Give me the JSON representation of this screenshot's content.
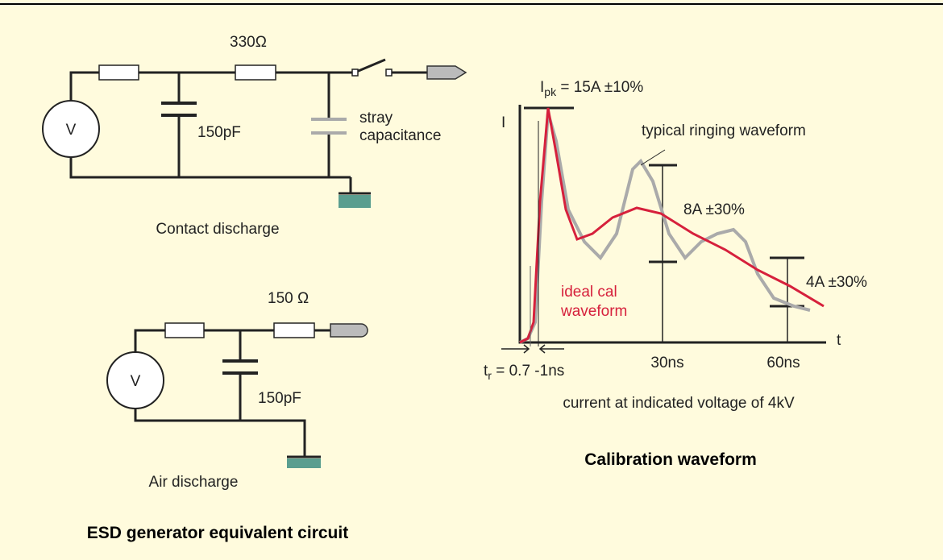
{
  "contact_circuit": {
    "resistor_label": "330Ω",
    "capacitor_label": "150pF",
    "stray_label": [
      "stray",
      "capacitance"
    ],
    "source_label": "V",
    "caption": "Contact discharge"
  },
  "air_circuit": {
    "resistor_label": "150 Ω",
    "capacitor_label": "150pF",
    "source_label": "V",
    "caption": "Air discharge"
  },
  "left_caption": "ESD generator equivalent circuit",
  "waveform": {
    "peak_label": {
      "symbol": "I",
      "subscript": "pk",
      "text": " = 15A ±10%"
    },
    "y_axis_label": "I",
    "x_axis_label": "t",
    "ringing_label": "typical ringing waveform",
    "mid_label": "8A ±30%",
    "late_label": "4A ±30%",
    "ideal_label": [
      "ideal cal",
      "waveform"
    ],
    "ticks": [
      "30ns",
      "60ns"
    ],
    "rise_label": {
      "symbol": "t",
      "subscript": "r",
      "text": " = 0.7  -1ns"
    },
    "note": "current at indicated voltage of 4kV",
    "title": "Calibration waveform"
  }
}
